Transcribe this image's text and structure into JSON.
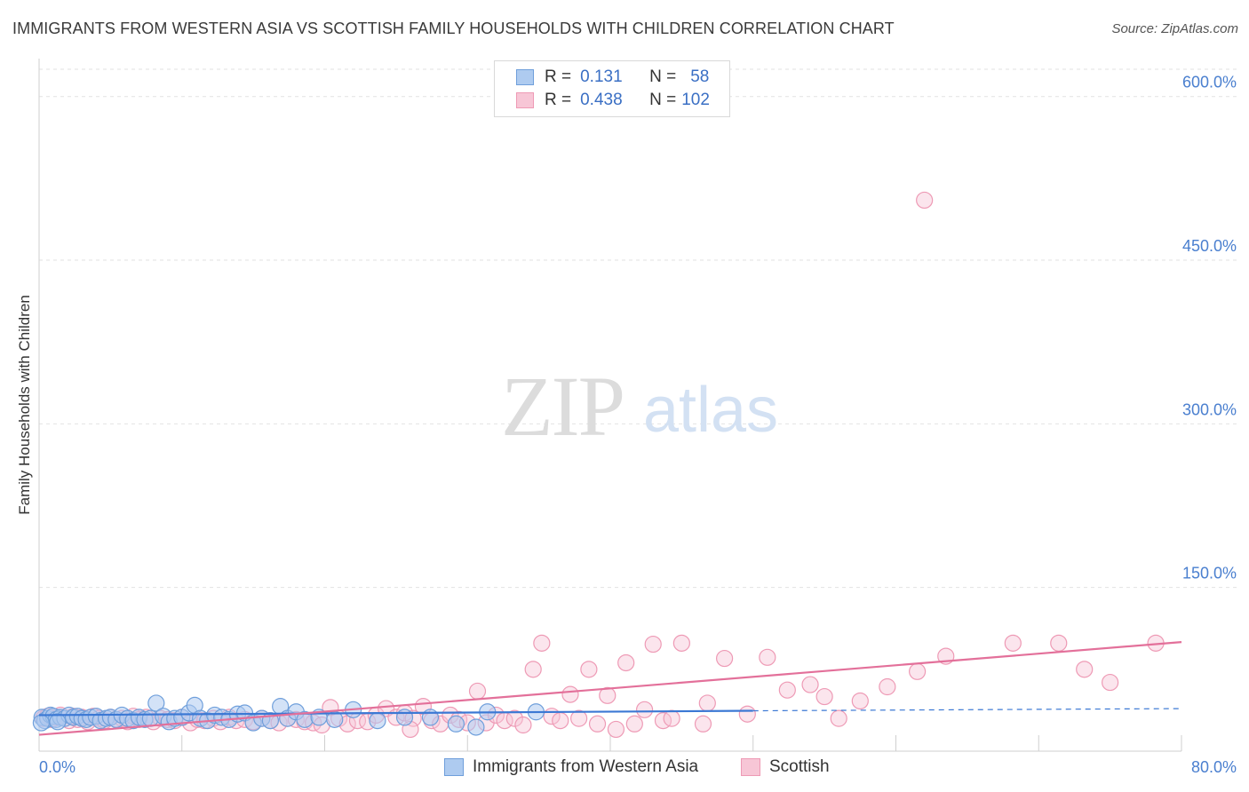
{
  "header": {
    "title": "IMMIGRANTS FROM WESTERN ASIA VS SCOTTISH FAMILY HOUSEHOLDS WITH CHILDREN CORRELATION CHART",
    "source": "Source: ZipAtlas.com"
  },
  "watermark": {
    "zip": "ZIP",
    "atlas": "atlas"
  },
  "legend": {
    "rows": [
      {
        "r_label": "R =",
        "r_value": "0.131",
        "n_label": "N =",
        "n_value": "58"
      },
      {
        "r_label": "R =",
        "r_value": "0.438",
        "n_label": "N =",
        "n_value": "102"
      }
    ]
  },
  "bottom_legend": {
    "series1": "Immigrants from Western Asia",
    "series2": "Scottish"
  },
  "colors": {
    "blue_fill": "#aecbf0",
    "blue_stroke": "#6f9fdb",
    "blue_line": "#3b78d4",
    "pink_fill": "#f7c6d6",
    "pink_stroke": "#ee9ab5",
    "pink_line": "#e3709a",
    "axis_label": "#4a7fcf",
    "grid": "#e2e2e2"
  },
  "chart_data": {
    "type": "scatter",
    "title": "IMMIGRANTS FROM WESTERN ASIA VS SCOTTISH FAMILY HOUSEHOLDS WITH CHILDREN CORRELATION CHART",
    "xlabel": "",
    "ylabel": "Family Households with Children",
    "xlim": [
      0,
      80
    ],
    "ylim": [
      0,
      625
    ],
    "x_tick_labels": [
      "0.0%",
      "80.0%"
    ],
    "y_ticks": [
      150,
      300,
      450,
      600
    ],
    "y_tick_labels": [
      "150.0%",
      "300.0%",
      "450.0%",
      "600.0%"
    ],
    "series": [
      {
        "name": "Immigrants from Western Asia",
        "color": "blue",
        "r": 0.131,
        "n": 58,
        "trend": {
          "x0": 0,
          "y0": 33,
          "x1": 50,
          "y1": 37,
          "dashed_to_x": 80,
          "dashed_to_y": 39
        },
        "points": [
          [
            0.2,
            31
          ],
          [
            0.4,
            28
          ],
          [
            0.6,
            30
          ],
          [
            0.8,
            33
          ],
          [
            1.0,
            32
          ],
          [
            1.2,
            29
          ],
          [
            1.5,
            31
          ],
          [
            1.8,
            30
          ],
          [
            2.1,
            33
          ],
          [
            2.4,
            31
          ],
          [
            2.7,
            32
          ],
          [
            3.0,
            30
          ],
          [
            3.3,
            29
          ],
          [
            3.6,
            31
          ],
          [
            4.0,
            32
          ],
          [
            4.3,
            28
          ],
          [
            4.7,
            30
          ],
          [
            5.0,
            31
          ],
          [
            5.4,
            29
          ],
          [
            5.8,
            33
          ],
          [
            6.2,
            30
          ],
          [
            6.6,
            28
          ],
          [
            7.0,
            31
          ],
          [
            7.4,
            29
          ],
          [
            7.8,
            30
          ],
          [
            8.2,
            44
          ],
          [
            8.7,
            32
          ],
          [
            9.1,
            27
          ],
          [
            9.5,
            30
          ],
          [
            10.0,
            31
          ],
          [
            10.5,
            35
          ],
          [
            10.9,
            42
          ],
          [
            11.3,
            30
          ],
          [
            11.8,
            28
          ],
          [
            12.3,
            33
          ],
          [
            12.8,
            31
          ],
          [
            13.3,
            29
          ],
          [
            13.9,
            34
          ],
          [
            14.4,
            35
          ],
          [
            15.0,
            26
          ],
          [
            15.6,
            30
          ],
          [
            16.2,
            28
          ],
          [
            16.9,
            41
          ],
          [
            17.4,
            30
          ],
          [
            18.0,
            36
          ],
          [
            18.6,
            29
          ],
          [
            19.6,
            31
          ],
          [
            20.7,
            29
          ],
          [
            22.0,
            38
          ],
          [
            23.7,
            28
          ],
          [
            25.6,
            31
          ],
          [
            27.4,
            31
          ],
          [
            29.2,
            25
          ],
          [
            30.6,
            22
          ],
          [
            31.4,
            36
          ],
          [
            34.8,
            36
          ],
          [
            0.15,
            26
          ],
          [
            1.3,
            27
          ]
        ]
      },
      {
        "name": "Scottish",
        "color": "pink",
        "r": 0.438,
        "n": 102,
        "trend": {
          "x0": 0,
          "y0": 15,
          "x1": 80,
          "y1": 100
        },
        "points": [
          [
            0.3,
            30
          ],
          [
            0.6,
            32
          ],
          [
            0.9,
            29
          ],
          [
            1.2,
            31
          ],
          [
            1.5,
            33
          ],
          [
            1.8,
            30
          ],
          [
            2.1,
            28
          ],
          [
            2.4,
            32
          ],
          [
            2.7,
            29
          ],
          [
            3.0,
            31
          ],
          [
            3.4,
            27
          ],
          [
            3.8,
            32
          ],
          [
            4.2,
            30
          ],
          [
            4.6,
            28
          ],
          [
            5.0,
            31
          ],
          [
            5.4,
            29
          ],
          [
            5.8,
            30
          ],
          [
            6.2,
            27
          ],
          [
            6.6,
            32
          ],
          [
            7.0,
            29
          ],
          [
            7.5,
            31
          ],
          [
            8.0,
            27
          ],
          [
            8.5,
            30
          ],
          [
            9.0,
            29
          ],
          [
            9.5,
            28
          ],
          [
            10.0,
            31
          ],
          [
            10.6,
            26
          ],
          [
            11.1,
            29
          ],
          [
            11.6,
            28
          ],
          [
            12.2,
            30
          ],
          [
            12.7,
            27
          ],
          [
            13.3,
            31
          ],
          [
            13.8,
            28
          ],
          [
            14.4,
            29
          ],
          [
            15.0,
            27
          ],
          [
            15.6,
            30
          ],
          [
            16.2,
            28
          ],
          [
            16.8,
            26
          ],
          [
            17.4,
            30
          ],
          [
            18.0,
            29
          ],
          [
            18.6,
            27
          ],
          [
            19.2,
            26
          ],
          [
            19.8,
            24
          ],
          [
            20.4,
            40
          ],
          [
            21.0,
            30
          ],
          [
            21.6,
            25
          ],
          [
            22.3,
            28
          ],
          [
            23.0,
            27
          ],
          [
            23.6,
            33
          ],
          [
            24.3,
            39
          ],
          [
            25.0,
            31
          ],
          [
            25.6,
            35
          ],
          [
            26.2,
            30
          ],
          [
            26.9,
            41
          ],
          [
            27.5,
            28
          ],
          [
            28.1,
            25
          ],
          [
            28.8,
            33
          ],
          [
            29.4,
            29
          ],
          [
            30.0,
            26
          ],
          [
            30.7,
            55
          ],
          [
            31.3,
            26
          ],
          [
            32.0,
            33
          ],
          [
            32.6,
            28
          ],
          [
            33.3,
            30
          ],
          [
            33.9,
            24
          ],
          [
            34.6,
            75
          ],
          [
            35.2,
            99
          ],
          [
            35.9,
            32
          ],
          [
            36.5,
            28
          ],
          [
            37.2,
            52
          ],
          [
            37.8,
            30
          ],
          [
            38.5,
            75
          ],
          [
            39.1,
            25
          ],
          [
            39.8,
            51
          ],
          [
            40.4,
            20
          ],
          [
            41.1,
            81
          ],
          [
            41.7,
            25
          ],
          [
            42.4,
            38
          ],
          [
            43.0,
            98
          ],
          [
            43.7,
            28
          ],
          [
            44.3,
            30
          ],
          [
            45.0,
            99
          ],
          [
            46.5,
            25
          ],
          [
            48.0,
            85
          ],
          [
            49.6,
            34
          ],
          [
            51.0,
            86
          ],
          [
            52.4,
            56
          ],
          [
            54.0,
            61
          ],
          [
            56.0,
            30
          ],
          [
            57.5,
            46
          ],
          [
            59.4,
            59
          ],
          [
            61.5,
            73
          ],
          [
            63.5,
            87
          ],
          [
            68.2,
            99
          ],
          [
            71.4,
            99
          ],
          [
            73.2,
            75
          ],
          [
            75.0,
            63
          ],
          [
            78.2,
            99
          ],
          [
            62.0,
            505
          ],
          [
            55.0,
            50
          ],
          [
            46.8,
            44
          ],
          [
            26.0,
            20
          ]
        ]
      }
    ]
  },
  "axis": {
    "ylabel": "Family Households with Children",
    "x_left": "0.0%",
    "x_right": "80.0%"
  }
}
